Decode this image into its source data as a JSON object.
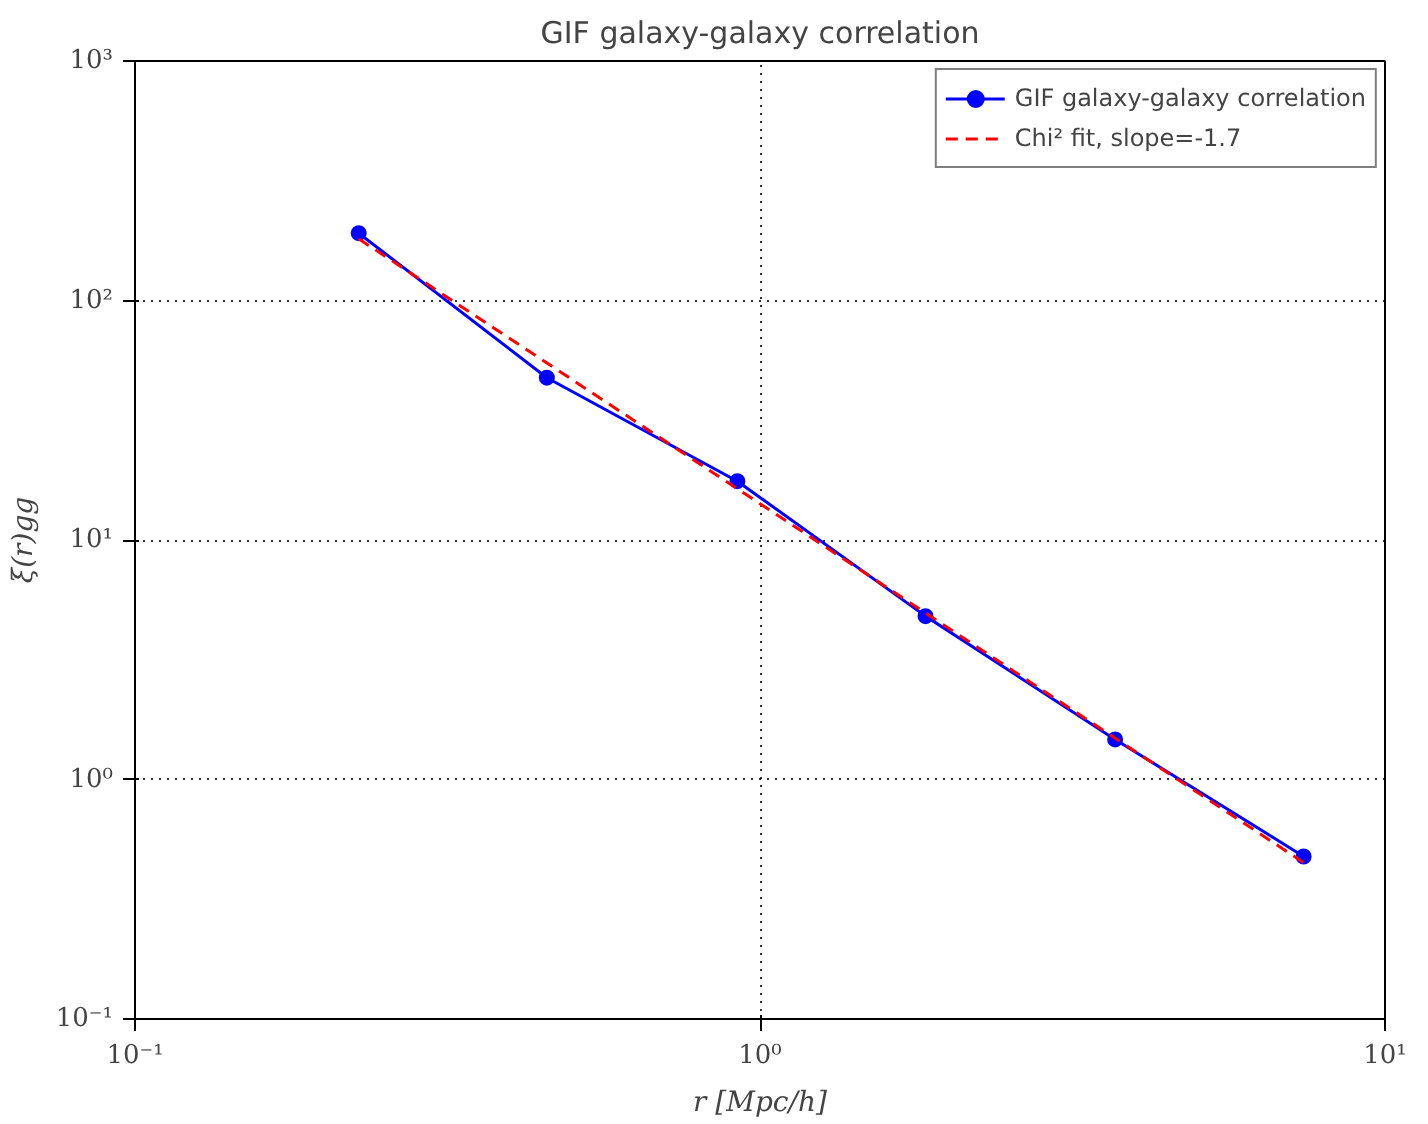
{
  "chart_data": {
    "type": "line",
    "title": "GIF galaxy-galaxy correlation",
    "xlabel": "r [Mpc/h]",
    "ylabel": "ξ(r)gg",
    "log": "xy",
    "grid": true,
    "legend": "top right",
    "xlim": [
      0.1,
      10
    ],
    "ylim": [
      0.1,
      1000
    ],
    "xticks": [
      {
        "value": 0.1,
        "label": "10⁻¹"
      },
      {
        "value": 1,
        "label": "10⁰"
      },
      {
        "value": 10,
        "label": "10¹"
      }
    ],
    "yticks": [
      {
        "value": 0.1,
        "label": "10⁻¹"
      },
      {
        "value": 1,
        "label": "10⁰"
      },
      {
        "value": 10,
        "label": "10¹"
      },
      {
        "value": 100,
        "label": "10²"
      },
      {
        "value": 1000,
        "label": "10³"
      }
    ],
    "series": [
      {
        "name": "GIF galaxy-galaxy correlation",
        "color": "#0000ff",
        "marker": "circle",
        "line_style": "solid",
        "x": [
          0.228,
          0.456,
          0.92,
          1.84,
          3.7,
          7.41
        ],
        "values": [
          191,
          47.6,
          17.6,
          4.81,
          1.47,
          0.477
        ]
      },
      {
        "name": "Chi² fit, slope=-1.7",
        "color": "#ff0000",
        "marker": "none",
        "line_style": "dashed",
        "x": [
          0.228,
          7.41
        ],
        "values": [
          181,
          0.45
        ]
      }
    ]
  }
}
